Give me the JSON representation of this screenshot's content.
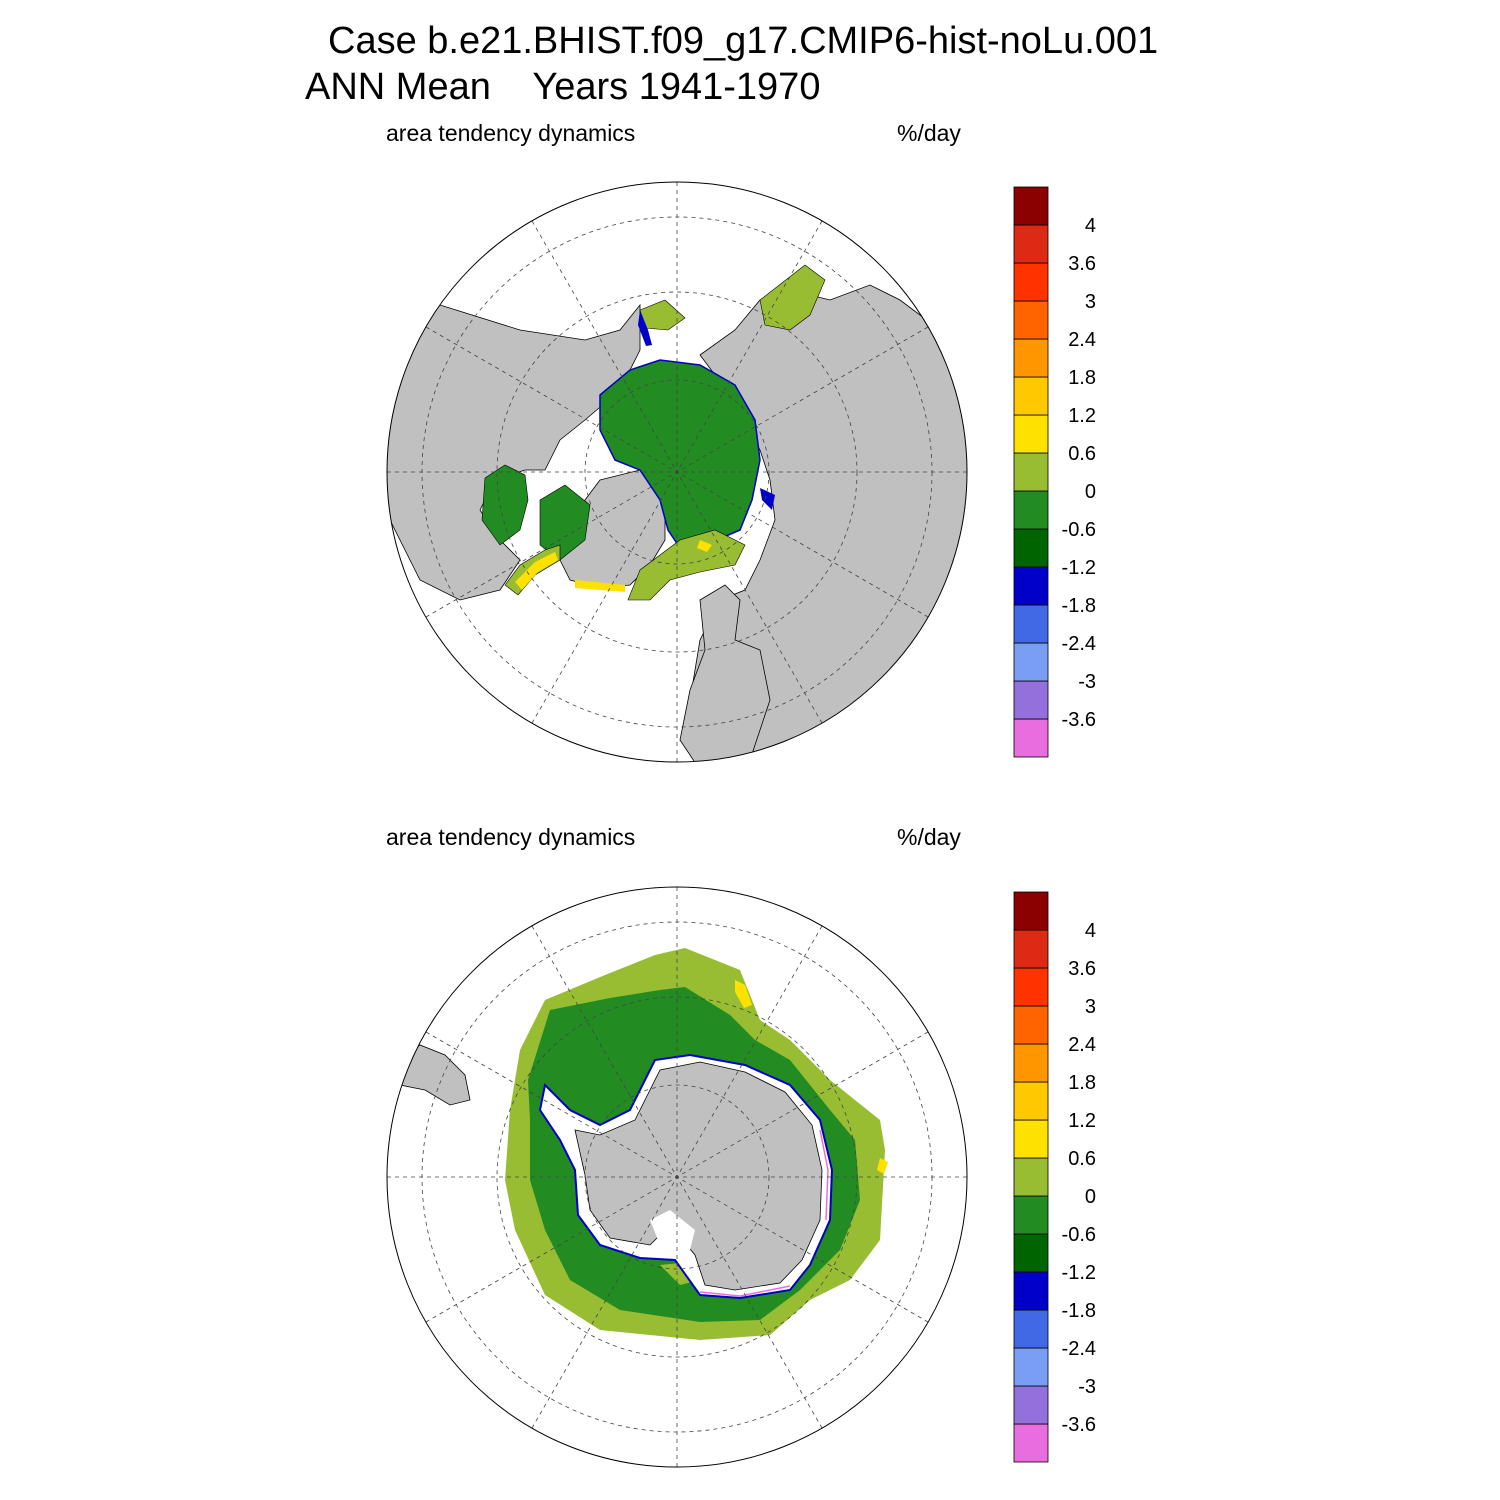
{
  "title": {
    "line1": "Case b.e21.BHIST.f09_g17.CMIP6-hist-noLu.001",
    "line2": "ANN Mean    Years 1941-1970"
  },
  "panels": [
    {
      "hemisphere": "north",
      "left_label": "area tendency dynamics",
      "right_label": "%/day"
    },
    {
      "hemisphere": "south",
      "left_label": "area tendency dynamics",
      "right_label": "%/day"
    }
  ],
  "colorbar": {
    "colors": [
      "#e86ee0",
      "#9370db",
      "#7b9ef5",
      "#4169e6",
      "#0000c8",
      "#006400",
      "#228b22",
      "#98bd32",
      "#ffe100",
      "#ffc800",
      "#ff9600",
      "#ff6400",
      "#ff3200",
      "#dc2a14",
      "#8b0000"
    ],
    "labels": [
      "-3.6",
      "-3",
      "-2.4",
      "-1.8",
      "-1.2",
      "-0.6",
      "0",
      "0.6",
      "1.2",
      "1.8",
      "2.4",
      "3",
      "3.6",
      "4"
    ]
  },
  "map_colors": {
    "land": "#c0c0c0",
    "ocean": "#ffffff",
    "no_change_green": "#98bd32",
    "negative_green": "#228b22",
    "dark_green": "#006400",
    "positive_yellow": "#ffe100",
    "edge_blue": "#0000c8",
    "edge_violet": "#e86ee0"
  }
}
